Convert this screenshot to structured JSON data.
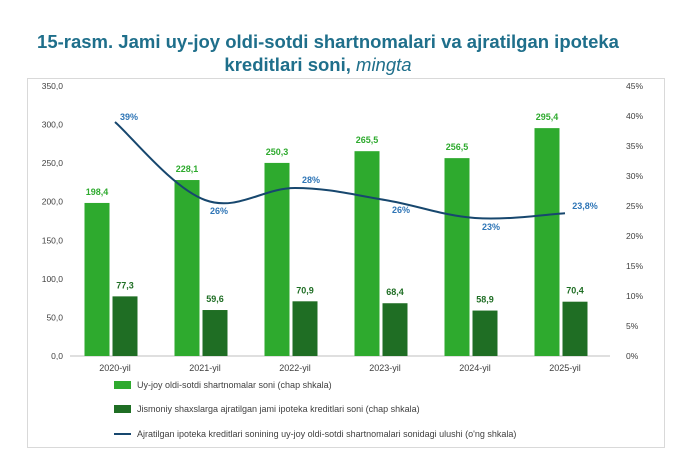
{
  "chart_data": {
    "type": "bar",
    "title_prefix": "15-rasm. Jami uy-joy oldi-sotdi shartnomalari va ajratilgan ipoteka",
    "title_suffix": "kreditlari soni, ",
    "title_unit": "mingta",
    "categories": [
      "2020-yil",
      "2021-yil",
      "2022-yil",
      "2023-yil",
      "2024-yil",
      "2025-yil"
    ],
    "series": [
      {
        "name": "Uy-joy oldi-sotdi shartnomalar soni (chap shkala)",
        "type": "bar",
        "color": "#2eaa2e",
        "values": [
          198.4,
          228.1,
          250.3,
          265.5,
          256.5,
          295.4
        ],
        "labels": [
          "198,4",
          "228,1",
          "250,3",
          "265,5",
          "256,5",
          "295,4"
        ]
      },
      {
        "name": "Jismoniy shaxslarga ajratilgan jami ipoteka kreditlari soni (chap shkala)",
        "type": "bar",
        "color": "#1f6e24",
        "values": [
          77.3,
          59.6,
          70.9,
          68.4,
          58.9,
          70.4
        ],
        "labels": [
          "77,3",
          "59,6",
          "70,9",
          "68,4",
          "58,9",
          "70,4"
        ]
      },
      {
        "name": "Ajratilgan ipoteka kreditlari sonining uy-joy oldi-sotdi shartnomalari sonidagi ulushi (o'ng shkala)",
        "type": "line",
        "color": "#17476e",
        "values": [
          39,
          26,
          28,
          26,
          23,
          23.8
        ],
        "labels": [
          "39%",
          "26%",
          "28%",
          "26%",
          "23%",
          "23,8%"
        ]
      }
    ],
    "y_left": {
      "min": 0,
      "max": 350,
      "ticks": [
        "0,0",
        "50,0",
        "100,0",
        "150,0",
        "200,0",
        "250,0",
        "300,0",
        "350,0"
      ]
    },
    "y_right": {
      "min": 0,
      "max": 45,
      "ticks": [
        "0%",
        "5%",
        "10%",
        "15%",
        "20%",
        "25%",
        "30%",
        "35%",
        "40%",
        "45%"
      ]
    },
    "colors": {
      "title": "#1f6f8b",
      "label_blue": "#2e75b6",
      "light_label": "#2eaa2e",
      "dark_label": "#1f6e24"
    }
  }
}
